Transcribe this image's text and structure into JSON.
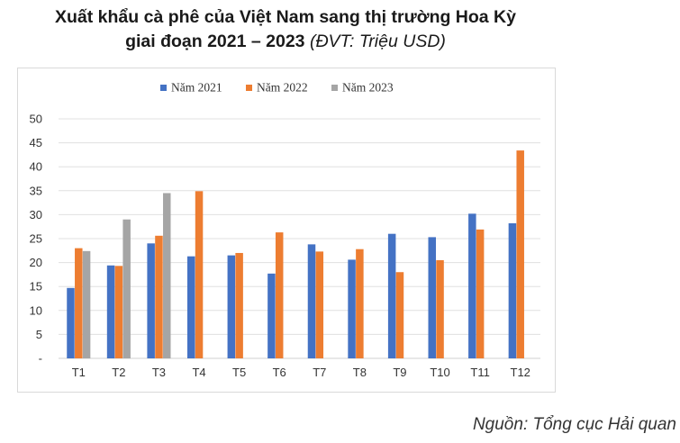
{
  "title": {
    "line1": "Xuất khẩu cà phê của Việt Nam sang thị trường Hoa Kỳ",
    "line2_main": "giai đoạn 2021 – 2023",
    "line2_unit": "(ĐVT: Triệu USD)"
  },
  "source": "Nguồn: Tổng cục Hải quan",
  "chart_data": {
    "type": "bar",
    "categories": [
      "T1",
      "T2",
      "T3",
      "T4",
      "T5",
      "T6",
      "T7",
      "T8",
      "T9",
      "T10",
      "T11",
      "T12"
    ],
    "series": [
      {
        "name": "Năm 2021",
        "color": "#4472c4",
        "values": [
          14.7,
          19.4,
          24.0,
          21.3,
          21.5,
          17.7,
          23.8,
          20.6,
          26.0,
          25.3,
          30.2,
          28.2
        ]
      },
      {
        "name": "Năm 2022",
        "color": "#ed7d31",
        "values": [
          23.0,
          19.3,
          25.6,
          34.9,
          22.0,
          26.3,
          22.3,
          22.8,
          18.0,
          20.5,
          26.9,
          43.4
        ]
      },
      {
        "name": "Năm 2023",
        "color": "#a5a5a5",
        "values": [
          22.4,
          29.0,
          34.5,
          null,
          null,
          null,
          null,
          null,
          null,
          null,
          null,
          null
        ]
      }
    ],
    "yticks": [
      "-",
      "5",
      "10",
      "15",
      "20",
      "25",
      "30",
      "35",
      "40",
      "45",
      "50"
    ],
    "ylim": [
      0,
      50
    ],
    "grid": true,
    "legend_position": "top-center"
  }
}
